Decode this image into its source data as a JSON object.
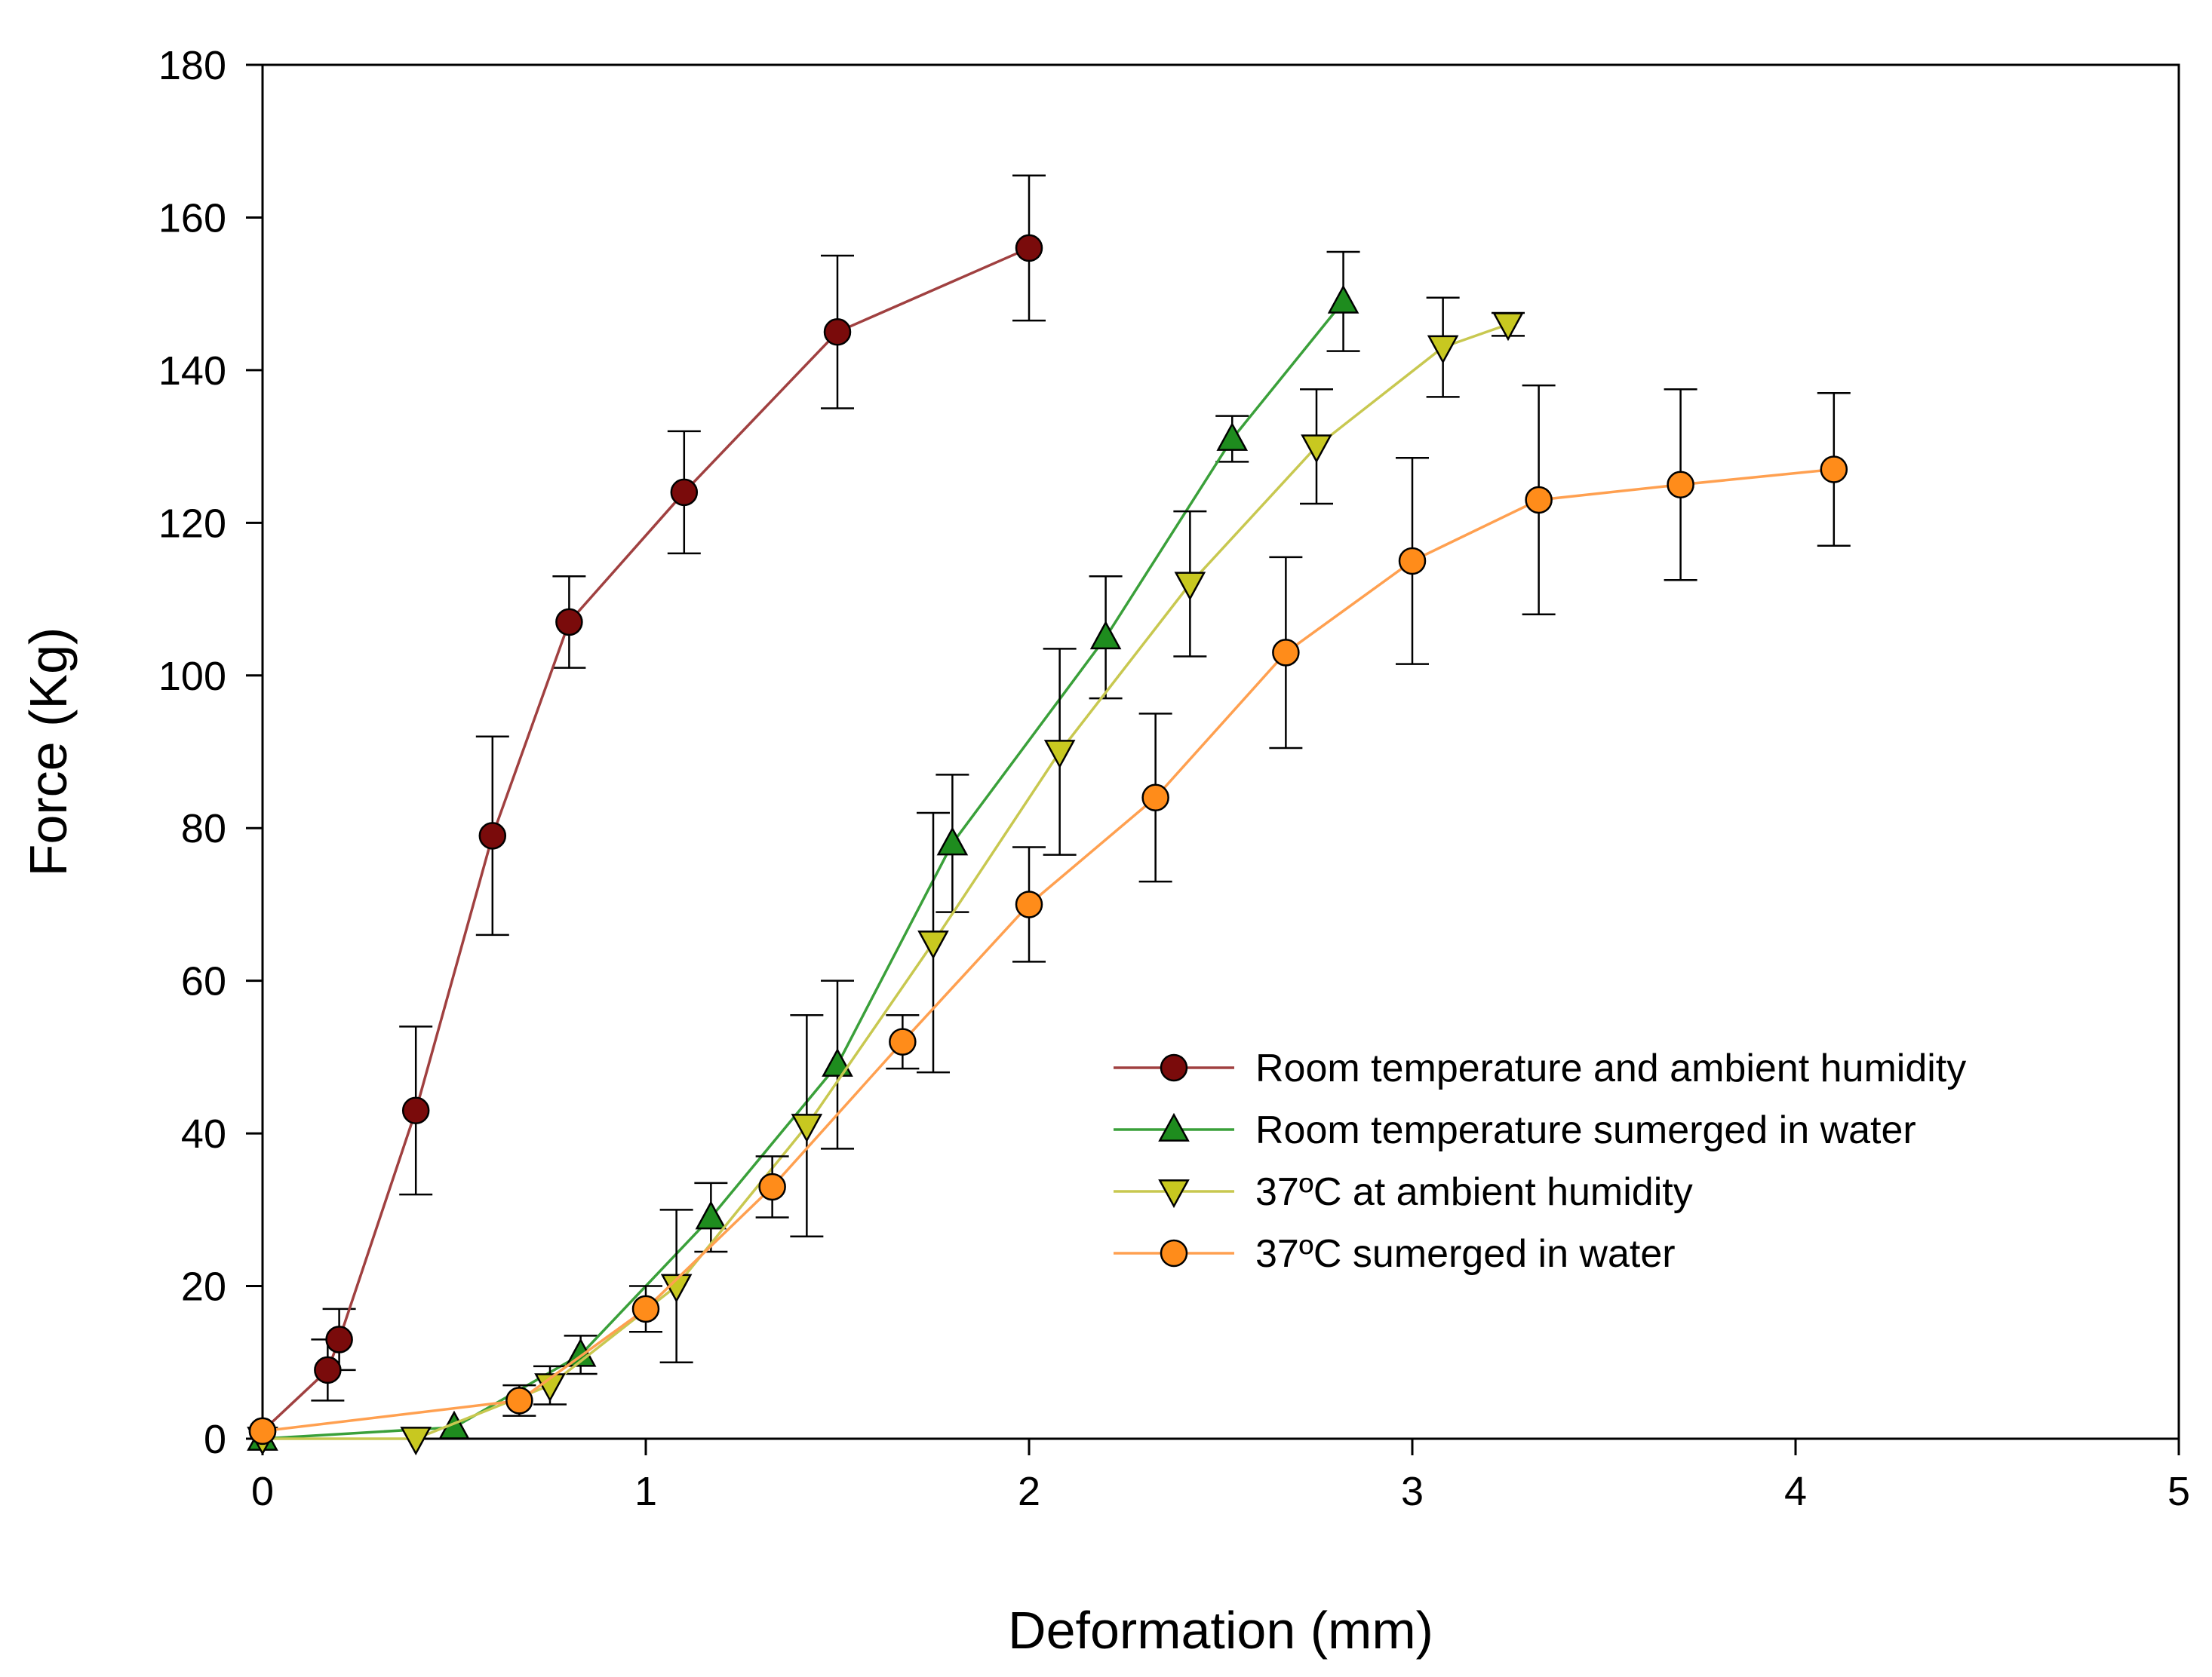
{
  "chart_data": {
    "type": "line",
    "title": "",
    "xlabel": "Deformation (mm)",
    "ylabel": "Force (Kg)",
    "xlim": [
      0,
      5
    ],
    "ylim": [
      0,
      180
    ],
    "xticks": [
      0,
      1,
      2,
      3,
      4,
      5
    ],
    "yticks": [
      0,
      20,
      40,
      60,
      80,
      100,
      120,
      140,
      160,
      180
    ],
    "grid": false,
    "legend_position": "lower-right",
    "series": [
      {
        "name": "Room temperature and ambient humidity",
        "color": "#7a0b0b",
        "line_color": "#a04040",
        "marker": "circle",
        "points": [
          {
            "x": 0.0,
            "y": 1,
            "err": 0
          },
          {
            "x": 0.17,
            "y": 9,
            "err": 4
          },
          {
            "x": 0.2,
            "y": 13,
            "err": 4
          },
          {
            "x": 0.4,
            "y": 43,
            "err": 11
          },
          {
            "x": 0.6,
            "y": 79,
            "err": 13
          },
          {
            "x": 0.8,
            "y": 107,
            "err": 6
          },
          {
            "x": 1.1,
            "y": 124,
            "err": 8
          },
          {
            "x": 1.5,
            "y": 145,
            "err": 10
          },
          {
            "x": 2.0,
            "y": 156,
            "err": 9.5
          }
        ]
      },
      {
        "name": "Room temperature sumerged in water",
        "color": "#1e8c1e",
        "line_color": "#3aa03a",
        "marker": "triangle-up",
        "points": [
          {
            "x": 0.0,
            "y": 0,
            "err": 0
          },
          {
            "x": 0.5,
            "y": 1.5,
            "err": 0
          },
          {
            "x": 0.83,
            "y": 11,
            "err": 2.5
          },
          {
            "x": 1.17,
            "y": 29,
            "err": 4.5
          },
          {
            "x": 1.5,
            "y": 49,
            "err": 11
          },
          {
            "x": 1.8,
            "y": 78,
            "err": 9
          },
          {
            "x": 2.2,
            "y": 105,
            "err": 8
          },
          {
            "x": 2.53,
            "y": 131,
            "err": 3
          },
          {
            "x": 2.82,
            "y": 149,
            "err": 6.5
          }
        ]
      },
      {
        "name": "37ºC at ambient humidity",
        "color": "#c8c820",
        "line_color": "#c8c850",
        "marker": "triangle-down",
        "points": [
          {
            "x": 0.0,
            "y": 0,
            "err": 0
          },
          {
            "x": 0.4,
            "y": 0,
            "err": 0
          },
          {
            "x": 0.75,
            "y": 7,
            "err": 2.5
          },
          {
            "x": 1.08,
            "y": 20,
            "err": 10
          },
          {
            "x": 1.42,
            "y": 41,
            "err": 14.5
          },
          {
            "x": 1.75,
            "y": 65,
            "err": 17
          },
          {
            "x": 2.08,
            "y": 90,
            "err": 13.5
          },
          {
            "x": 2.42,
            "y": 112,
            "err": 9.5
          },
          {
            "x": 2.75,
            "y": 130,
            "err": 7.5
          },
          {
            "x": 3.08,
            "y": 143,
            "err": 6.5
          },
          {
            "x": 3.25,
            "y": 146,
            "err": 1.5
          }
        ]
      },
      {
        "name": "37ºC sumerged in water",
        "color": "#ff8c1a",
        "line_color": "#ffa050",
        "marker": "circle",
        "points": [
          {
            "x": 0.0,
            "y": 1,
            "err": 0
          },
          {
            "x": 0.67,
            "y": 5,
            "err": 2
          },
          {
            "x": 1.0,
            "y": 17,
            "err": 3
          },
          {
            "x": 1.33,
            "y": 33,
            "err": 4
          },
          {
            "x": 1.67,
            "y": 52,
            "err": 3.5
          },
          {
            "x": 2.0,
            "y": 70,
            "err": 7.5
          },
          {
            "x": 2.33,
            "y": 84,
            "err": 11
          },
          {
            "x": 2.67,
            "y": 103,
            "err": 12.5
          },
          {
            "x": 3.0,
            "y": 115,
            "err": 13.5
          },
          {
            "x": 3.33,
            "y": 123,
            "err": 15
          },
          {
            "x": 3.7,
            "y": 125,
            "err": 12.5
          },
          {
            "x": 4.1,
            "y": 127,
            "err": 10
          }
        ]
      }
    ]
  }
}
